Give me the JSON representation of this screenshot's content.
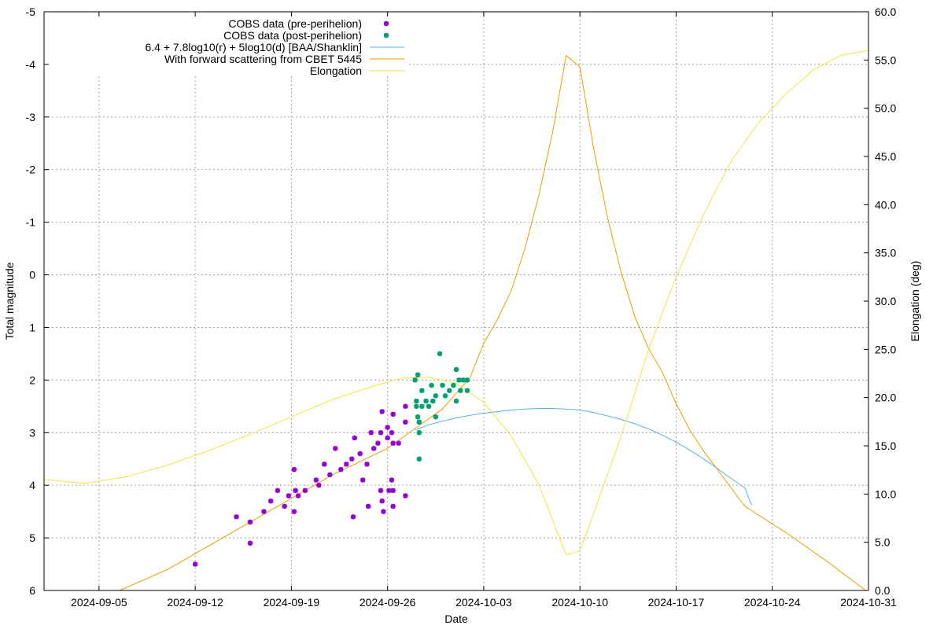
{
  "chart_data": {
    "type": "scatter",
    "xlabel": "Date",
    "ylabel": "Total magnitude",
    "y2label": "Elongation (deg)",
    "xlim": [
      "2024-09-01",
      "2024-10-31"
    ],
    "ylim": [
      6,
      -5
    ],
    "y2lim": [
      0,
      60
    ],
    "y_inverted": true,
    "grid": true,
    "legend_position": "top-left",
    "x_ticks": [
      "2024-09-05",
      "2024-09-12",
      "2024-09-19",
      "2024-09-26",
      "2024-10-03",
      "2024-10-10",
      "2024-10-17",
      "2024-10-24",
      "2024-10-31"
    ],
    "y_ticks": [
      "-5",
      "-4",
      "-3",
      "-2",
      "-1",
      "0",
      "1",
      "2",
      "3",
      "4",
      "5",
      "6"
    ],
    "y_tick_values": [
      -5,
      -4,
      -3,
      -2,
      -1,
      0,
      1,
      2,
      3,
      4,
      5,
      6
    ],
    "y2_ticks": [
      "0.0",
      "5.0",
      "10.0",
      "15.0",
      "20.0",
      "25.0",
      "30.0",
      "35.0",
      "40.0",
      "45.0",
      "50.0",
      "55.0",
      "60.0"
    ],
    "y2_tick_values": [
      0,
      5,
      10,
      15,
      20,
      25,
      30,
      35,
      40,
      45,
      50,
      55,
      60
    ],
    "series": [
      {
        "name": "COBS data (pre-perihelion)",
        "kind": "points",
        "axis": "y",
        "color": "#9400d3",
        "points": [
          [
            "2024-09-12",
            5.5
          ],
          [
            "2024-09-15",
            4.6
          ],
          [
            "2024-09-16",
            4.7
          ],
          [
            "2024-09-16",
            5.1
          ],
          [
            "2024-09-17",
            4.5
          ],
          [
            "2024-09-17.5",
            4.3
          ],
          [
            "2024-09-18",
            4.1
          ],
          [
            "2024-09-18.5",
            4.4
          ],
          [
            "2024-09-18.8",
            4.2
          ],
          [
            "2024-09-19.2",
            3.7
          ],
          [
            "2024-09-19.3",
            4.1
          ],
          [
            "2024-09-19.5",
            4.2
          ],
          [
            "2024-09-19.2",
            4.5
          ],
          [
            "2024-09-20",
            4.1
          ],
          [
            "2024-09-20.8",
            3.9
          ],
          [
            "2024-09-21",
            4.0
          ],
          [
            "2024-09-21.4",
            3.6
          ],
          [
            "2024-09-21.8",
            3.8
          ],
          [
            "2024-09-22.2",
            3.3
          ],
          [
            "2024-09-22.6",
            3.7
          ],
          [
            "2024-09-23",
            3.6
          ],
          [
            "2024-09-23.4",
            3.5
          ],
          [
            "2024-09-23.6",
            3.1
          ],
          [
            "2024-09-23.5",
            4.6
          ],
          [
            "2024-09-24",
            3.4
          ],
          [
            "2024-09-24.2",
            3.9
          ],
          [
            "2024-09-24.5",
            3.6
          ],
          [
            "2024-09-24.8",
            3.0
          ],
          [
            "2024-09-24.6",
            4.4
          ],
          [
            "2024-09-25",
            3.3
          ],
          [
            "2024-09-25.3",
            3.2
          ],
          [
            "2024-09-25.5",
            3.0
          ],
          [
            "2024-09-25.6",
            2.6
          ],
          [
            "2024-09-25.5",
            4.1
          ],
          [
            "2024-09-25.6",
            4.3
          ],
          [
            "2024-09-25.7",
            4.5
          ],
          [
            "2024-09-26",
            2.9
          ],
          [
            "2024-09-26",
            3.1
          ],
          [
            "2024-09-26.1",
            4.1
          ],
          [
            "2024-09-26.3",
            3.0
          ],
          [
            "2024-09-26.4",
            2.65
          ],
          [
            "2024-09-26.4",
            3.2
          ],
          [
            "2024-09-26.3",
            3.9
          ],
          [
            "2024-09-26.4",
            4.1
          ],
          [
            "2024-09-26.4",
            4.4
          ],
          [
            "2024-09-26.8",
            3.2
          ],
          [
            "2024-09-27.3",
            2.5
          ],
          [
            "2024-09-27.3",
            4.2
          ],
          [
            "2024-09-27.3",
            2.8
          ]
        ]
      },
      {
        "name": "COBS data (post-perihelion)",
        "kind": "points",
        "axis": "y",
        "color": "#009e73",
        "points": [
          [
            "2024-09-28",
            2.0
          ],
          [
            "2024-09-28.2",
            1.9
          ],
          [
            "2024-09-28.1",
            2.4
          ],
          [
            "2024-09-28.1",
            2.5
          ],
          [
            "2024-09-28.2",
            2.7
          ],
          [
            "2024-09-28.3",
            2.8
          ],
          [
            "2024-09-28.3",
            3.0
          ],
          [
            "2024-09-28.3",
            3.5
          ],
          [
            "2024-09-28.5",
            2.2
          ],
          [
            "2024-09-28.5",
            2.5
          ],
          [
            "2024-09-28.8",
            2.4
          ],
          [
            "2024-09-29",
            2.5
          ],
          [
            "2024-09-29.2",
            2.1
          ],
          [
            "2024-09-29.3",
            2.4
          ],
          [
            "2024-09-29.5",
            2.3
          ],
          [
            "2024-09-29.5",
            2.7
          ],
          [
            "2024-09-29.8",
            1.5
          ],
          [
            "2024-09-30",
            2.1
          ],
          [
            "2024-09-30.2",
            2.3
          ],
          [
            "2024-09-30.5",
            2.2
          ],
          [
            "2024-09-30.8",
            2.1
          ],
          [
            "2024-10-01",
            1.8
          ],
          [
            "2024-10-01",
            2.4
          ],
          [
            "2024-10-01.2",
            2.0
          ],
          [
            "2024-10-01.3",
            2.2
          ],
          [
            "2024-10-01.5",
            2.0
          ],
          [
            "2024-10-01.8",
            2.0
          ],
          [
            "2024-10-01.8",
            2.2
          ]
        ]
      },
      {
        "name": "6.4 + 7.8log10(r) + 5log10(d) [BAA/Shanklin]",
        "kind": "line",
        "axis": "y",
        "color": "#56b4e9",
        "points": [
          [
            "2024-09-28",
            2.95
          ],
          [
            "2024-09-29",
            2.85
          ],
          [
            "2024-09-30",
            2.78
          ],
          [
            "2024-10-01",
            2.72
          ],
          [
            "2024-10-02",
            2.67
          ],
          [
            "2024-10-03",
            2.63
          ],
          [
            "2024-10-04",
            2.6
          ],
          [
            "2024-10-05",
            2.57
          ],
          [
            "2024-10-06",
            2.55
          ],
          [
            "2024-10-07",
            2.54
          ],
          [
            "2024-10-08",
            2.54
          ],
          [
            "2024-10-09",
            2.55
          ],
          [
            "2024-10-10",
            2.57
          ],
          [
            "2024-10-11",
            2.62
          ],
          [
            "2024-10-12",
            2.68
          ],
          [
            "2024-10-13",
            2.75
          ],
          [
            "2024-10-14",
            2.83
          ],
          [
            "2024-10-15",
            2.93
          ],
          [
            "2024-10-16",
            3.05
          ],
          [
            "2024-10-17",
            3.18
          ],
          [
            "2024-10-18",
            3.33
          ],
          [
            "2024-10-19",
            3.5
          ],
          [
            "2024-10-20",
            3.68
          ],
          [
            "2024-10-21",
            3.87
          ],
          [
            "2024-10-22",
            4.05
          ],
          [
            "2024-10-22.5",
            4.38
          ]
        ]
      },
      {
        "name": "With forward scattering from CBET 5445",
        "kind": "line",
        "axis": "y",
        "color": "#e69f00",
        "points": [
          [
            "2024-09-06.5",
            6.0
          ],
          [
            "2024-09-10",
            5.6
          ],
          [
            "2024-09-14",
            5.0
          ],
          [
            "2024-09-18",
            4.4
          ],
          [
            "2024-09-22",
            3.8
          ],
          [
            "2024-09-26",
            3.3
          ],
          [
            "2024-09-28",
            2.92
          ],
          [
            "2024-09-30",
            2.55
          ],
          [
            "2024-10-01",
            2.25
          ],
          [
            "2024-10-02",
            1.95
          ],
          [
            "2024-10-03",
            1.3
          ],
          [
            "2024-10-04",
            0.85
          ],
          [
            "2024-10-05",
            0.3
          ],
          [
            "2024-10-06",
            -0.5
          ],
          [
            "2024-10-07",
            -1.5
          ],
          [
            "2024-10-08",
            -2.7
          ],
          [
            "2024-10-09",
            -4.17
          ],
          [
            "2024-10-10",
            -3.95
          ],
          [
            "2024-10-11",
            -2.4
          ],
          [
            "2024-10-12",
            -1.1
          ],
          [
            "2024-10-13",
            -0.05
          ],
          [
            "2024-10-14",
            0.8
          ],
          [
            "2024-10-15",
            1.4
          ],
          [
            "2024-10-16",
            1.85
          ],
          [
            "2024-10-17",
            2.45
          ],
          [
            "2024-10-18",
            2.95
          ],
          [
            "2024-10-19",
            3.35
          ],
          [
            "2024-10-20",
            3.7
          ],
          [
            "2024-10-22",
            4.4
          ],
          [
            "2024-10-25",
            4.9
          ],
          [
            "2024-10-28",
            5.45
          ],
          [
            "2024-10-30.8",
            6.0
          ]
        ]
      },
      {
        "name": "Elongation",
        "kind": "line",
        "axis": "y2",
        "color": "#f0e442",
        "points": [
          [
            "2024-09-01",
            11.5
          ],
          [
            "2024-09-04",
            11.1
          ],
          [
            "2024-09-07",
            11.8
          ],
          [
            "2024-09-10",
            13.0
          ],
          [
            "2024-09-13",
            14.5
          ],
          [
            "2024-09-16",
            16.2
          ],
          [
            "2024-09-19",
            18.0
          ],
          [
            "2024-09-22",
            19.8
          ],
          [
            "2024-09-25",
            21.2
          ],
          [
            "2024-09-27",
            22.0
          ],
          [
            "2024-09-29",
            22.1
          ],
          [
            "2024-10-01",
            21.5
          ],
          [
            "2024-10-03",
            19.5
          ],
          [
            "2024-10-05",
            16.0
          ],
          [
            "2024-10-07",
            11.0
          ],
          [
            "2024-10-09",
            3.7
          ],
          [
            "2024-10-10",
            4.1
          ],
          [
            "2024-10-11",
            8.0
          ],
          [
            "2024-10-13",
            16.0
          ],
          [
            "2024-10-15",
            25.0
          ],
          [
            "2024-10-17",
            32.5
          ],
          [
            "2024-10-19",
            39.0
          ],
          [
            "2024-10-21",
            44.5
          ],
          [
            "2024-10-23",
            48.5
          ],
          [
            "2024-10-25",
            51.5
          ],
          [
            "2024-10-27",
            54.0
          ],
          [
            "2024-10-29",
            55.5
          ],
          [
            "2024-10-31",
            56.0
          ]
        ]
      }
    ]
  }
}
